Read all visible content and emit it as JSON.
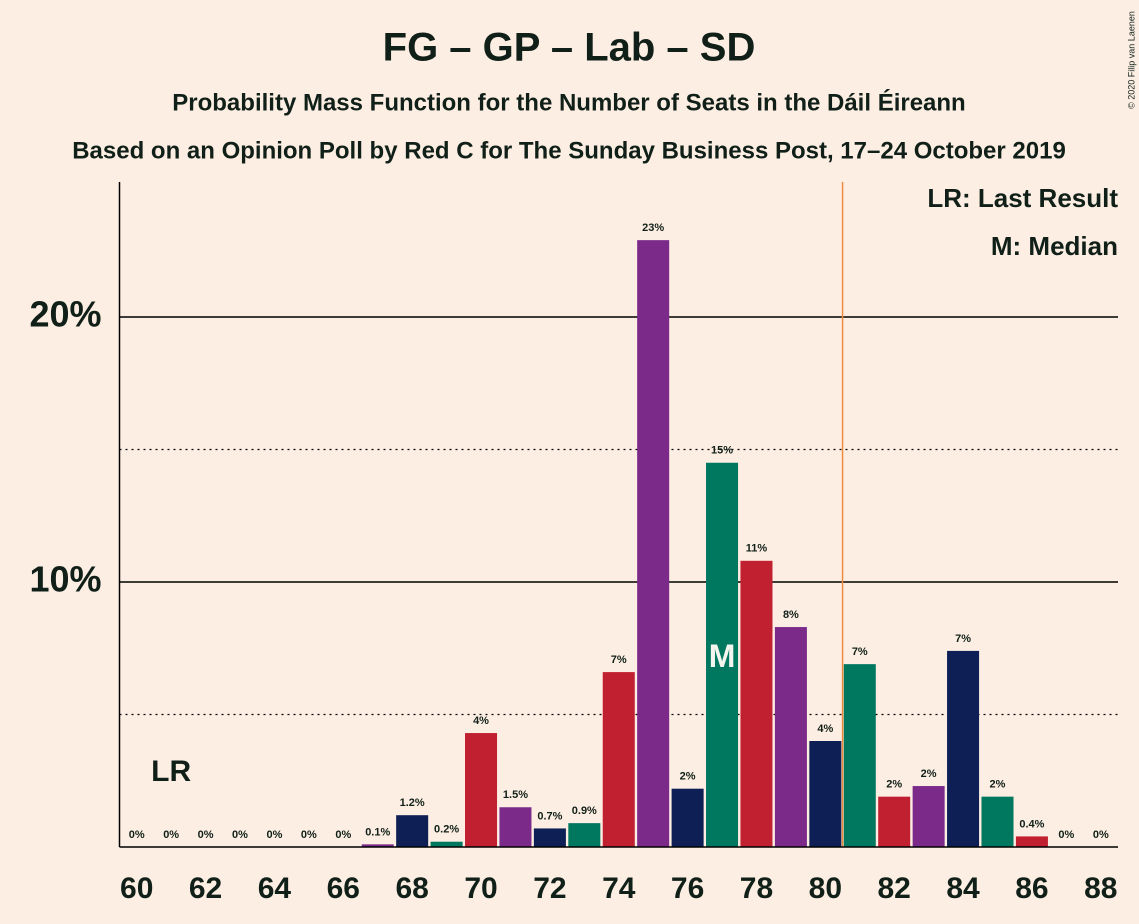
{
  "chart_data": {
    "type": "bar",
    "title": "FG – GP – Lab – SD",
    "subtitle": "Probability Mass Function for the Number of Seats in the Dáil Éireann",
    "source": "Based on an Opinion Poll by Red C for The Sunday Business Post, 17–24 October 2019",
    "copyright": "© 2020 Filip van Laenen",
    "x": [
      60,
      61,
      62,
      63,
      64,
      65,
      66,
      67,
      68,
      69,
      70,
      71,
      72,
      73,
      74,
      75,
      76,
      77,
      78,
      79,
      80,
      81,
      82,
      83,
      84,
      85,
      86,
      87,
      88
    ],
    "values": [
      0,
      0,
      0,
      0,
      0,
      0,
      0,
      0.1,
      1.2,
      0.2,
      4.3,
      1.5,
      0.7,
      0.9,
      6.6,
      22.9,
      2.2,
      14.5,
      10.8,
      8.3,
      4.0,
      6.9,
      1.9,
      2.3,
      7.4,
      1.9,
      0.4,
      0,
      0
    ],
    "value_labels": [
      "0%",
      "0%",
      "0%",
      "0%",
      "0%",
      "0%",
      "0%",
      "0.1%",
      "1.2%",
      "0.2%",
      "4%",
      "1.5%",
      "0.7%",
      "0.9%",
      "7%",
      "23%",
      "2%",
      "15%",
      "11%",
      "8%",
      "4%",
      "7%",
      "2%",
      "2%",
      "7%",
      "2%",
      "0.4%",
      "0%",
      "0%"
    ],
    "colors": [
      "#c0202f",
      "#7b2a8a",
      "#0d1f54",
      "#00775f",
      "#c0202f",
      "#7b2a8a",
      "#0d1f54",
      "#7b2a8a",
      "#0d1f54",
      "#00775f",
      "#c0202f",
      "#7b2a8a",
      "#0d1f54",
      "#00775f",
      "#c0202f",
      "#7b2a8a",
      "#0d1f54",
      "#00775f",
      "#c0202f",
      "#7b2a8a",
      "#0d1f54",
      "#00775f",
      "#c0202f",
      "#7b2a8a",
      "#0d1f54",
      "#00775f",
      "#c0202f",
      "#7b2a8a",
      "#0d1f54"
    ],
    "xlim": [
      59.5,
      88.5
    ],
    "xticks": [
      60,
      62,
      64,
      66,
      68,
      70,
      72,
      74,
      76,
      78,
      80,
      82,
      84,
      86,
      88
    ],
    "ylim": [
      0,
      25
    ],
    "yticks": [
      {
        "value": 10,
        "label": "10%"
      },
      {
        "value": 20,
        "label": "20%"
      }
    ],
    "minor_yticks": [
      5,
      15
    ],
    "majority_line": 80.5,
    "majority_color": "#f08a3c",
    "last_result": {
      "x": 61,
      "label": "LR"
    },
    "median": {
      "x": 77,
      "label": "M"
    },
    "legend": [
      "LR: Last Result",
      "M: Median"
    ]
  }
}
